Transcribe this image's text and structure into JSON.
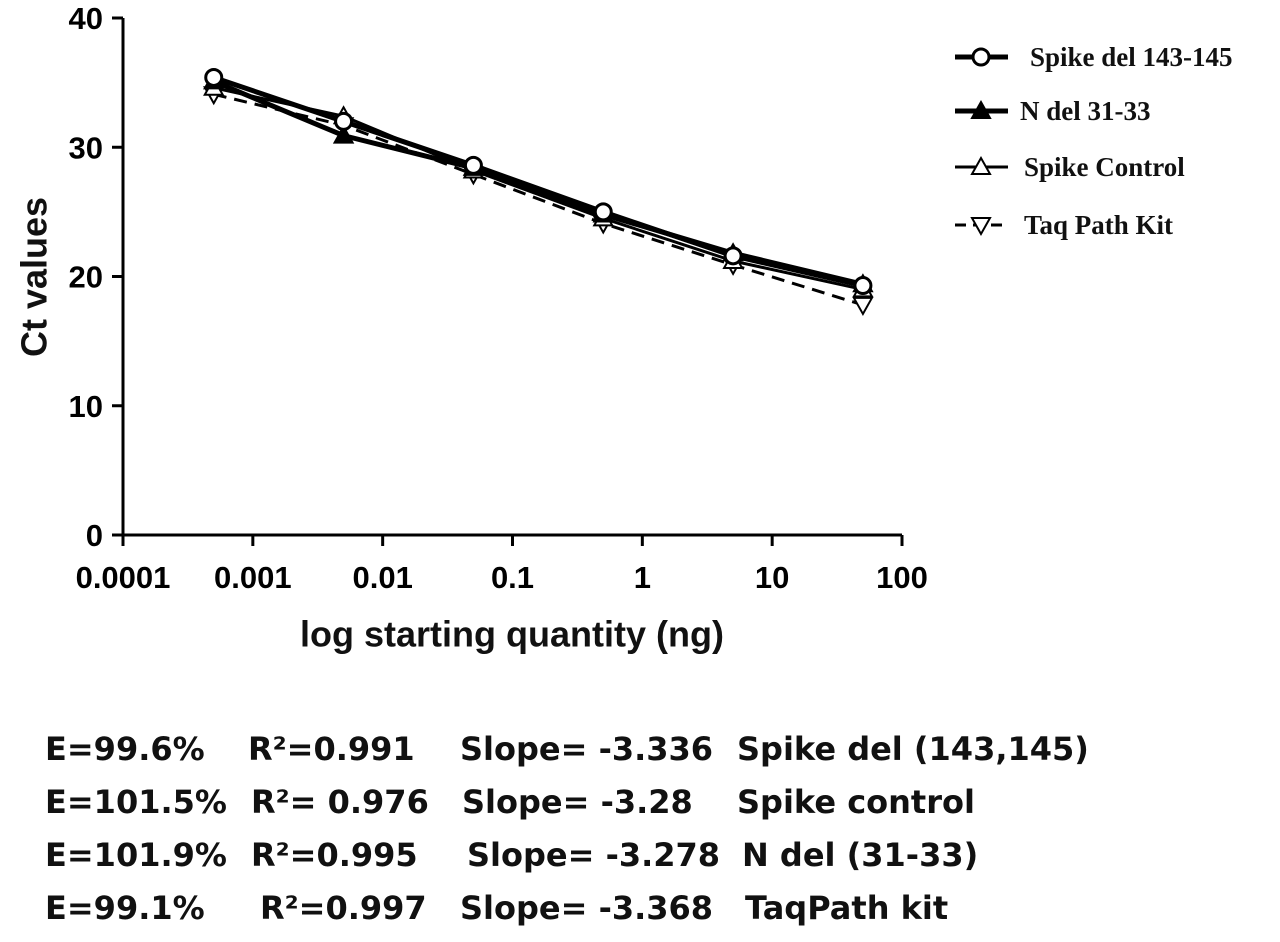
{
  "chart_data": {
    "type": "line",
    "x_scale": "log",
    "xlabel": "log starting quantity (ng)",
    "ylabel": "Ct values",
    "xlim": [
      0.0001,
      100
    ],
    "ylim": [
      0,
      40
    ],
    "x_ticks": [
      "0.0001",
      "0.001",
      "0.01",
      "0.1",
      "1",
      "10",
      "100"
    ],
    "y_ticks": [
      "0",
      "10",
      "20",
      "30",
      "40"
    ],
    "x": [
      0.0005,
      0.005,
      0.05,
      0.5,
      5,
      50
    ],
    "grid": false,
    "legend_position": "top-right",
    "series": [
      {
        "name": "Spike del 143-145",
        "marker": "circle-open",
        "line": "solid-thick",
        "values": [
          35.4,
          32.0,
          28.6,
          25.0,
          21.6,
          19.3
        ]
      },
      {
        "name": "N del 31-33",
        "marker": "triangle-up-filled",
        "line": "solid-thick",
        "values": [
          35.1,
          30.9,
          28.4,
          24.8,
          21.8,
          19.4
        ]
      },
      {
        "name": "Spike Control",
        "marker": "triangle-up-open",
        "line": "solid",
        "values": [
          34.6,
          32.4,
          28.2,
          24.5,
          21.2,
          19.0
        ]
      },
      {
        "name": "Taq Path Kit",
        "marker": "triangle-down-open",
        "line": "dashed",
        "values": [
          34.1,
          31.7,
          27.9,
          24.1,
          20.9,
          17.8
        ]
      }
    ]
  },
  "stats_table": [
    {
      "efficiency": "E=99.6%",
      "r2": "R²=0.991",
      "slope": "Slope= -3.336",
      "assay": "Spike del (143,145)"
    },
    {
      "efficiency": "E=101.5%",
      "r2": "R²= 0.976",
      "slope": "Slope= -3.28",
      "assay": "Spike control"
    },
    {
      "efficiency": "E=101.9%",
      "r2": "R²=0.995",
      "slope": "Slope= -3.278",
      "assay": "N del (31-33)"
    },
    {
      "efficiency": "E=99.1%",
      "r2": "R²=0.997",
      "slope": "Slope= -3.368",
      "assay": "TaqPath kit"
    }
  ]
}
